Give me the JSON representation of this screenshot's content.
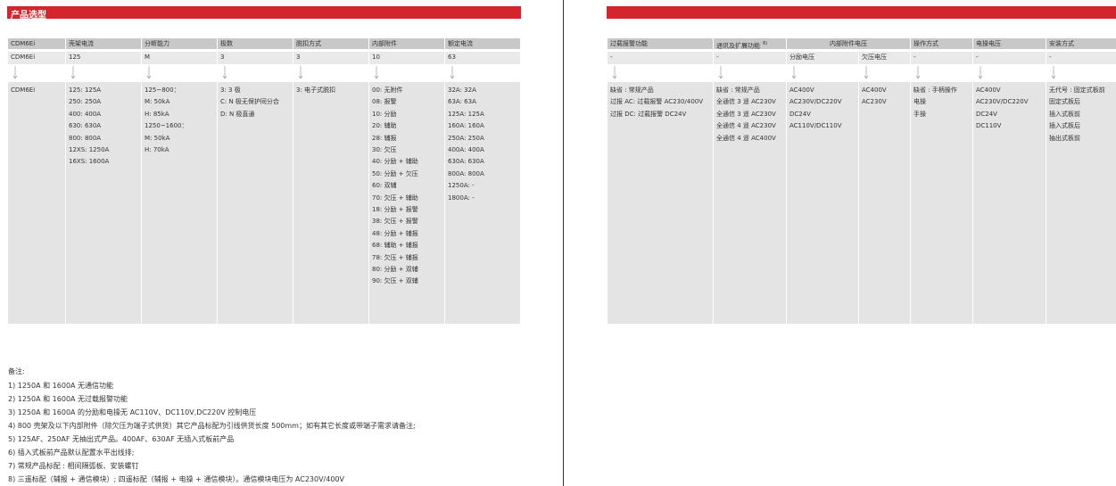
{
  "left": {
    "title": "产品选型",
    "headers": [
      "CDM6Ei",
      "壳架电流",
      "分断能力",
      "极数",
      "脱扣方式",
      "内部附件",
      "额定电流"
    ],
    "codes": [
      "CDM6Ei",
      "125",
      "M",
      "3",
      "3",
      "10",
      "63"
    ],
    "options": [
      [
        "CDM6Ei"
      ],
      [
        "125: 125A",
        "250: 250A",
        "400: 400A",
        "630: 630A",
        "800: 800A",
        "12XS: 1250A",
        "16XS: 1600A"
      ],
      [
        "125~800：",
        "M: 50kA",
        "H: 85kA",
        "1250~1600：",
        "M: 50kA",
        "H: 70kA"
      ],
      [
        "3: 3 极",
        "C: N 极无保护同分合",
        "D: N 极直通"
      ],
      [
        "3: 电子式脱扣"
      ],
      [
        "00: 无附件",
        "08: 报警",
        "10: 分励",
        "20: 辅助",
        "28: 辅报",
        "30: 欠压",
        "40: 分励 + 辅助",
        "50: 分励 + 欠压",
        "60: 双辅",
        "70: 欠压 + 辅助",
        "18: 分励 + 报警",
        "38: 欠压 + 报警",
        "48: 分励 + 辅报",
        "68: 辅助 + 辅报",
        "78: 欠压 + 辅报",
        "80: 分励 + 双辅",
        "90: 欠压 + 双辅"
      ],
      [
        "32A: 32A",
        "63A: 63A",
        "125A: 125A",
        "160A: 160A",
        "250A: 250A",
        "400A: 400A",
        "630A: 630A",
        "800A: 800A",
        "1250A: -",
        "1800A: -"
      ]
    ]
  },
  "right": {
    "headers": [
      "过载报警功能",
      "通讯及扩展功能",
      "内部附件电压",
      "操作方式",
      "电操电压",
      "安装方式"
    ],
    "header_note": "8)",
    "codes": [
      "-",
      "-",
      "分励电压",
      "欠压电压",
      "-",
      "-",
      "-"
    ],
    "options": [
      [
        "缺省 : 常规产品",
        "过报 AC: 过载报警 AC230/400V",
        "过报 DC: 过载报警 DC24V"
      ],
      [
        "缺省 : 常规产品",
        "全通信 3 遥 AC230V",
        "全通信 3 遥 AC230V",
        "全通信 4 遥 AC230V",
        "全通信 4 遥 AC400V"
      ],
      [
        "AC400V",
        "AC230V/DC220V",
        "DC24V",
        "AC110V/DC110V"
      ],
      [
        "AC400V",
        "AC230V"
      ],
      [
        "缺省 : 手柄操作",
        "电操",
        "手操"
      ],
      [
        "AC400V",
        "AC230V/DC220V",
        "DC24V",
        "DC110V"
      ],
      [
        "无代号 : 固定式板前",
        "固定式板后",
        "插入式板前",
        "插入式板后",
        "抽出式板前"
      ]
    ]
  },
  "notes": {
    "title": "备注:",
    "items": [
      "1) 1250A 和 1600A 无通信功能",
      "2) 1250A 和 1600A 无过载报警功能",
      "3) 1250A 和 1600A 的分励和电操无 AC110V、DC110V,DC220V 控制电压",
      "4) 800 壳架及以下内部附件（除欠压为端子式供货）其它产品标配为引线供货长度 500mm；如有其它长度或带端子需求请备注;",
      "5) 125AF、250AF 无抽出式产品。400AF、630AF 无插入式板前产品",
      "6) 插入式板前产品默认配置水平出线排;",
      "7) 常规产品标配 : 相间隔弧板、安装螺钉",
      "8) 三遥标配（辅报 + 通信模块）; 四遥标配（辅报 + 电操 + 通信模块）。通信模块电压为 AC230V/400V"
    ]
  }
}
